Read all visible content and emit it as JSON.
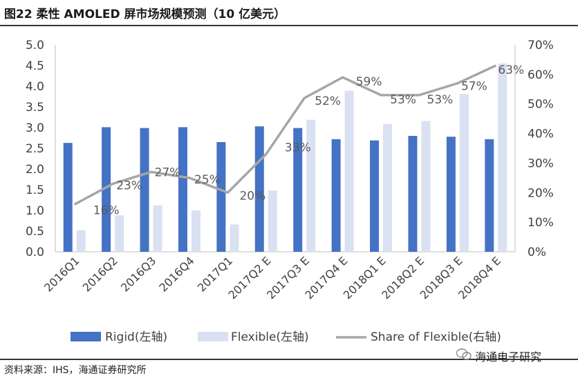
{
  "title": "图22 柔性 AMOLED 屏市场规模预测（10 亿美元）",
  "source": "资料来源：IHS，海通证券研究所",
  "watermark": "海通电子研究",
  "chart_data": {
    "type": "bar",
    "categories": [
      "2016Q1",
      "2016Q2",
      "2016Q3",
      "2016Q4",
      "2017Q1",
      "2017Q2 E",
      "2017Q3 E",
      "2017Q4 E",
      "2018Q1 E",
      "2018Q2 E",
      "2018Q3 E",
      "2018Q4 E"
    ],
    "left_axis": {
      "ylim": [
        0,
        5.0
      ],
      "ticks": [
        "0.0",
        "0.5",
        "1.0",
        "1.5",
        "2.0",
        "2.5",
        "3.0",
        "3.5",
        "4.0",
        "4.5",
        "5.0"
      ]
    },
    "right_axis": {
      "ylim": [
        0,
        70
      ],
      "ticks": [
        "0%",
        "10%",
        "20%",
        "30%",
        "40%",
        "50%",
        "60%",
        "70%"
      ]
    },
    "series": [
      {
        "name": "Rigid(左轴)",
        "kind": "bar",
        "axis": "left",
        "color": "#4472c4",
        "values": [
          2.63,
          3.01,
          2.99,
          3.01,
          2.65,
          3.03,
          2.99,
          2.72,
          2.69,
          2.8,
          2.78,
          2.72
        ]
      },
      {
        "name": "Flexible(左轴)",
        "kind": "bar",
        "axis": "left",
        "color": "#d9e1f2",
        "values": [
          0.52,
          0.88,
          1.12,
          1.0,
          0.66,
          1.48,
          3.19,
          3.89,
          3.09,
          3.16,
          3.81,
          4.55
        ]
      },
      {
        "name": "Share of Flexible(右轴)",
        "kind": "line",
        "axis": "right",
        "color": "#a6a6a6",
        "values": [
          16,
          23,
          27,
          25,
          20,
          33,
          52,
          59,
          53,
          53,
          57,
          63
        ],
        "labels": [
          "16%",
          "23%",
          "27%",
          "25%",
          "20%",
          "33%",
          "52%",
          "59%",
          "53%",
          "53%",
          "57%",
          "63%"
        ]
      }
    ],
    "legend_position": "bottom",
    "grid": false
  }
}
